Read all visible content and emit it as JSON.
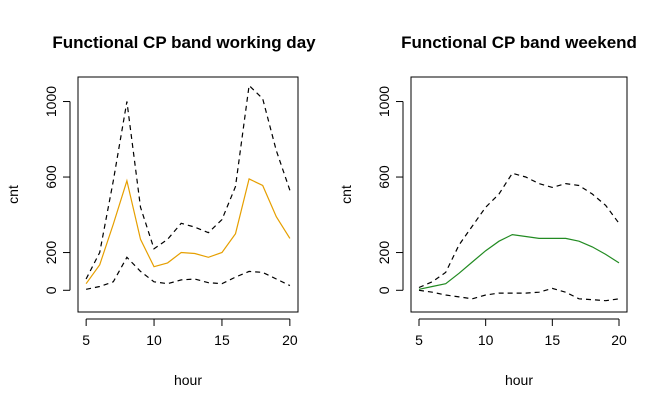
{
  "chart_data": [
    {
      "type": "line",
      "title": "Functional CP band working day",
      "xlabel": "hour",
      "ylabel": "cnt",
      "x": [
        5,
        6,
        7,
        8,
        9,
        10,
        11,
        12,
        13,
        14,
        15,
        16,
        17,
        18,
        19,
        20
      ],
      "xlim": [
        4.4,
        20.6
      ],
      "ylim": [
        -115,
        1130
      ],
      "xticks": [
        5,
        10,
        15,
        20
      ],
      "yticks": [
        0,
        200,
        600,
        1000
      ],
      "grid": false,
      "legend": "none",
      "series": [
        {
          "role": "upper",
          "style": "dashed",
          "color": "#000000",
          "values": [
            60,
            200,
            580,
            1000,
            440,
            220,
            270,
            355,
            335,
            305,
            375,
            550,
            1085,
            1015,
            740,
            530
          ]
        },
        {
          "role": "center",
          "style": "solid",
          "color": "#E69F00",
          "values": [
            35,
            135,
            350,
            580,
            270,
            125,
            145,
            200,
            195,
            175,
            200,
            300,
            590,
            555,
            390,
            275
          ]
        },
        {
          "role": "lower",
          "style": "dashed",
          "color": "#000000",
          "values": [
            5,
            20,
            45,
            175,
            100,
            45,
            35,
            55,
            60,
            40,
            35,
            70,
            100,
            95,
            60,
            25
          ]
        }
      ]
    },
    {
      "type": "line",
      "title": "Functional CP band weekend",
      "xlabel": "hour",
      "ylabel": "cnt",
      "x": [
        5,
        6,
        7,
        8,
        9,
        10,
        11,
        12,
        13,
        14,
        15,
        16,
        17,
        18,
        19,
        20
      ],
      "xlim": [
        4.4,
        20.6
      ],
      "ylim": [
        -115,
        1130
      ],
      "xticks": [
        5,
        10,
        15,
        20
      ],
      "yticks": [
        0,
        200,
        600,
        1000
      ],
      "grid": false,
      "legend": "none",
      "series": [
        {
          "role": "upper",
          "style": "dashed",
          "color": "#000000",
          "values": [
            15,
            45,
            95,
            240,
            340,
            440,
            510,
            620,
            600,
            565,
            545,
            565,
            555,
            510,
            450,
            355
          ]
        },
        {
          "role": "center",
          "style": "solid",
          "color": "#228B22",
          "values": [
            5,
            20,
            35,
            90,
            150,
            210,
            260,
            295,
            285,
            275,
            275,
            275,
            260,
            230,
            190,
            145
          ]
        },
        {
          "role": "lower",
          "style": "dashed",
          "color": "#000000",
          "values": [
            0,
            -10,
            -25,
            -35,
            -45,
            -25,
            -15,
            -15,
            -15,
            -10,
            10,
            -10,
            -45,
            -50,
            -55,
            -45
          ]
        }
      ]
    }
  ]
}
